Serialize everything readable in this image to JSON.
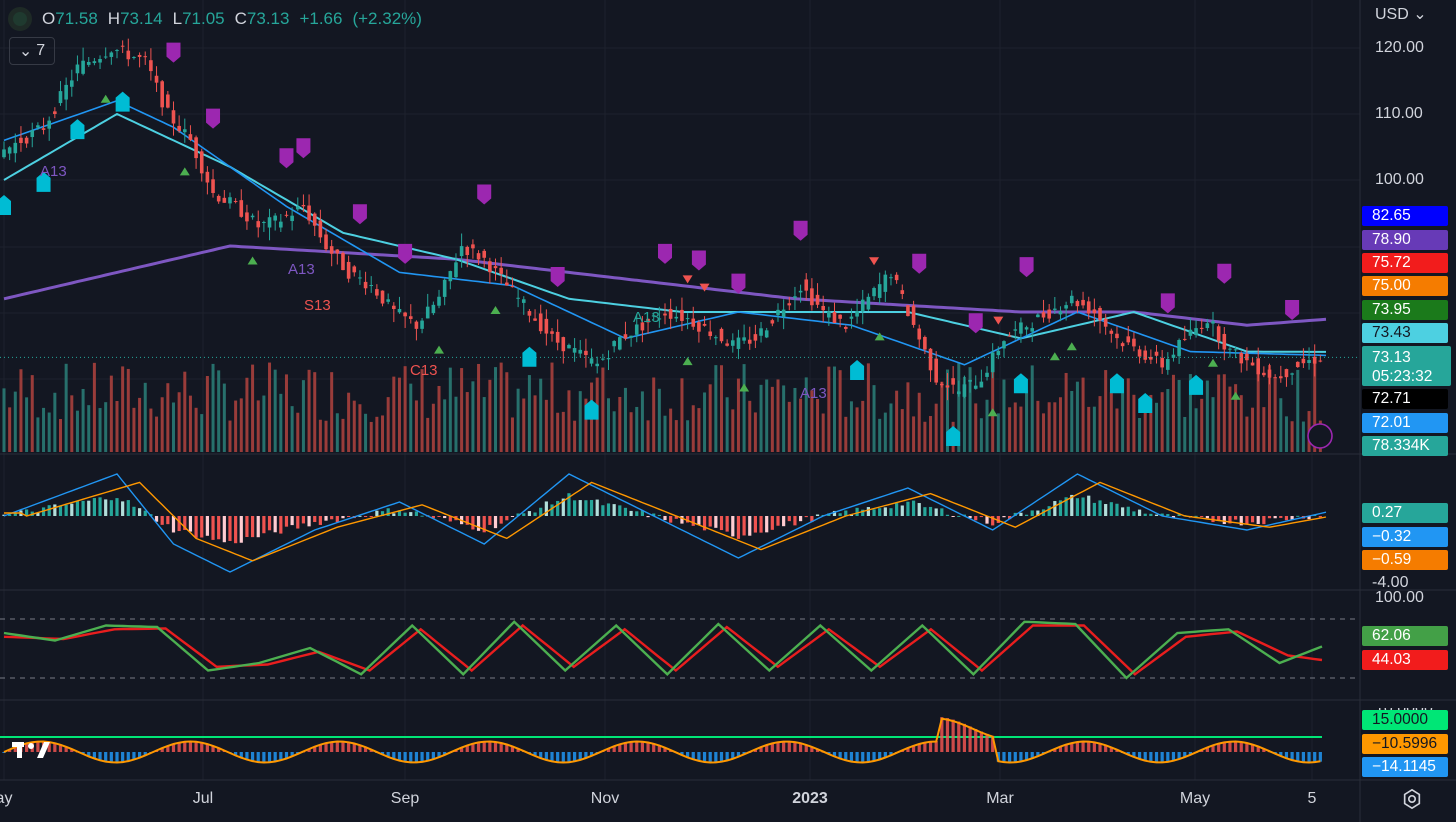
{
  "header": {
    "open_label": "O",
    "open": "71.58",
    "high_label": "H",
    "high": "73.14",
    "low_label": "L",
    "low": "71.05",
    "close_label": "C",
    "close": "73.13",
    "change": "+1.66",
    "change_pct": "(+2.32%)",
    "collapse_count": "7",
    "currency": "USD"
  },
  "colors": {
    "background": "#131722",
    "up": "#26a69a",
    "down": "#ef5350",
    "ma_fast": "#2196f3",
    "ma_mid": "#4dd0e1",
    "ma_slow": "#7e57c2",
    "stoch_k": "#4caf50",
    "stoch_d": "#e91e1e",
    "accent_purple": "#9c27b0"
  },
  "price_axis": {
    "ticks": [
      "120.00",
      "110.00",
      "100.00"
    ]
  },
  "macd_axis": {
    "ticks": [
      "-4.00"
    ]
  },
  "stoch_axis": {
    "ticks": [
      "100.00"
    ]
  },
  "osc_axis": {
    "ticks": [
      "10.0000"
    ]
  },
  "price_tags": [
    {
      "value": "82.65",
      "bg": "#0000ff",
      "fg": "#ffffff"
    },
    {
      "value": "78.90",
      "bg": "#673ab7",
      "fg": "#ffffff"
    },
    {
      "value": "75.72",
      "bg": "#f21c1c",
      "fg": "#ffffff"
    },
    {
      "value": "75.00",
      "bg": "#f57c00",
      "fg": "#ffffff"
    },
    {
      "value": "73.95",
      "bg": "#1b7a1b",
      "fg": "#ffffff"
    },
    {
      "value": "73.43",
      "bg": "#4dd0e1",
      "fg": "#131722"
    }
  ],
  "last_price": {
    "value": "73.13",
    "countdown": "05:23:32"
  },
  "lower_tags": [
    {
      "value": "72.71",
      "bg": "#000000",
      "fg": "#ffffff"
    },
    {
      "value": "72.01",
      "bg": "#2196f3",
      "fg": "#ffffff"
    },
    {
      "value": "78.334K",
      "bg": "#26a69a",
      "fg": "#ffffff"
    }
  ],
  "macd_tags": [
    {
      "value": "0.27",
      "bg": "#26a69a",
      "fg": "#ffffff"
    },
    {
      "value": "−0.32",
      "bg": "#2196f3",
      "fg": "#ffffff"
    },
    {
      "value": "−0.59",
      "bg": "#f57c00",
      "fg": "#ffffff"
    }
  ],
  "stoch_tags": [
    {
      "value": "62.06",
      "bg": "#43a047",
      "fg": "#ffffff"
    },
    {
      "value": "44.03",
      "bg": "#f21c1c",
      "fg": "#ffffff"
    }
  ],
  "osc_tags": [
    {
      "value": "15.0000",
      "bg": "#00e676",
      "fg": "#131722"
    },
    {
      "value": "−10.5996",
      "bg": "#ff9800",
      "fg": "#131722"
    },
    {
      "value": "−14.1145",
      "bg": "#2196f3",
      "fg": "#ffffff"
    }
  ],
  "x_axis": [
    {
      "label": "ay",
      "bold": false
    },
    {
      "label": "Jul",
      "bold": false
    },
    {
      "label": "Sep",
      "bold": false
    },
    {
      "label": "Nov",
      "bold": false
    },
    {
      "label": "2023",
      "bold": true
    },
    {
      "label": "Mar",
      "bold": false
    },
    {
      "label": "May",
      "bold": false
    },
    {
      "label": "5",
      "bold": false
    }
  ],
  "annotations": [
    "A13",
    "A13",
    "S13",
    "C13",
    "A13",
    "A13"
  ],
  "chart_data": {
    "type": "candlestick",
    "series_note": "",
    "price_range": [
      60,
      124
    ],
    "indicators": [
      "MA",
      "MA",
      "MA",
      "Volume",
      "MACD",
      "Stochastic",
      "Oscillator"
    ],
    "price_path": [
      [
        0,
        104
      ],
      [
        8,
        108
      ],
      [
        14,
        117
      ],
      [
        20,
        120
      ],
      [
        26,
        118
      ],
      [
        30,
        110
      ],
      [
        34,
        106
      ],
      [
        38,
        98
      ],
      [
        42,
        96
      ],
      [
        46,
        93
      ],
      [
        50,
        94
      ],
      [
        54,
        96
      ],
      [
        58,
        90
      ],
      [
        62,
        86
      ],
      [
        66,
        84
      ],
      [
        70,
        80
      ],
      [
        74,
        78
      ],
      [
        78,
        82
      ],
      [
        82,
        90
      ],
      [
        86,
        88
      ],
      [
        90,
        84
      ],
      [
        94,
        80
      ],
      [
        98,
        76
      ],
      [
        102,
        74
      ],
      [
        106,
        72
      ],
      [
        110,
        76
      ],
      [
        114,
        78
      ],
      [
        118,
        80
      ],
      [
        122,
        79
      ],
      [
        126,
        77
      ],
      [
        130,
        75
      ],
      [
        134,
        76
      ],
      [
        138,
        80
      ],
      [
        142,
        84
      ],
      [
        146,
        80
      ],
      [
        150,
        78
      ],
      [
        154,
        82
      ],
      [
        158,
        86
      ],
      [
        162,
        78
      ],
      [
        166,
        70
      ],
      [
        170,
        68
      ],
      [
        174,
        70
      ],
      [
        178,
        76
      ],
      [
        182,
        78
      ],
      [
        186,
        80
      ],
      [
        190,
        82
      ],
      [
        194,
        80
      ],
      [
        198,
        76
      ],
      [
        202,
        74
      ],
      [
        206,
        72
      ],
      [
        210,
        76
      ],
      [
        214,
        79
      ],
      [
        218,
        74
      ],
      [
        222,
        72
      ],
      [
        226,
        70
      ],
      [
        230,
        72
      ],
      [
        234,
        73.13
      ]
    ],
    "ma_fast": [
      [
        0,
        106
      ],
      [
        20,
        112
      ],
      [
        30,
        108
      ],
      [
        50,
        96
      ],
      [
        70,
        86
      ],
      [
        90,
        84
      ],
      [
        110,
        76
      ],
      [
        130,
        80
      ],
      [
        150,
        78
      ],
      [
        170,
        72
      ],
      [
        190,
        80
      ],
      [
        210,
        74
      ],
      [
        234,
        73.43
      ]
    ],
    "ma_mid": [
      [
        0,
        100
      ],
      [
        20,
        110
      ],
      [
        40,
        102
      ],
      [
        60,
        92
      ],
      [
        80,
        88
      ],
      [
        100,
        82
      ],
      [
        120,
        80
      ],
      [
        140,
        80
      ],
      [
        160,
        80
      ],
      [
        180,
        76
      ],
      [
        200,
        80
      ],
      [
        220,
        74
      ],
      [
        234,
        73.95
      ]
    ],
    "ma_slow": [
      [
        0,
        82
      ],
      [
        20,
        86
      ],
      [
        40,
        90
      ],
      [
        60,
        89
      ],
      [
        80,
        88
      ],
      [
        100,
        86
      ],
      [
        120,
        84
      ],
      [
        140,
        82
      ],
      [
        160,
        81
      ],
      [
        180,
        80
      ],
      [
        200,
        80
      ],
      [
        220,
        78
      ],
      [
        234,
        78.9
      ]
    ],
    "macd": [
      [
        0,
        0
      ],
      [
        20,
        3
      ],
      [
        30,
        -2
      ],
      [
        40,
        -4
      ],
      [
        55,
        -1
      ],
      [
        70,
        1
      ],
      [
        85,
        -2
      ],
      [
        100,
        3
      ],
      [
        115,
        0
      ],
      [
        130,
        -3
      ],
      [
        145,
        0
      ],
      [
        160,
        2
      ],
      [
        175,
        -1
      ],
      [
        190,
        3
      ],
      [
        205,
        0
      ],
      [
        220,
        -1
      ],
      [
        234,
        0.27
      ]
    ],
    "stoch_k": [
      [
        0,
        80
      ],
      [
        6,
        70
      ],
      [
        12,
        90
      ],
      [
        18,
        88
      ],
      [
        24,
        30
      ],
      [
        30,
        40
      ],
      [
        36,
        60
      ],
      [
        42,
        25
      ],
      [
        48,
        90
      ],
      [
        54,
        25
      ],
      [
        60,
        95
      ],
      [
        66,
        30
      ],
      [
        72,
        90
      ],
      [
        78,
        25
      ],
      [
        84,
        92
      ],
      [
        90,
        30
      ],
      [
        96,
        90
      ],
      [
        102,
        30
      ],
      [
        108,
        90
      ],
      [
        114,
        25
      ],
      [
        120,
        95
      ],
      [
        126,
        92
      ],
      [
        132,
        20
      ],
      [
        138,
        80
      ],
      [
        144,
        85
      ],
      [
        150,
        40
      ],
      [
        155,
        62.06
      ]
    ],
    "stoch_d": [
      [
        0,
        75
      ],
      [
        7,
        72
      ],
      [
        13,
        85
      ],
      [
        19,
        86
      ],
      [
        25,
        35
      ],
      [
        31,
        38
      ],
      [
        37,
        55
      ],
      [
        43,
        30
      ],
      [
        49,
        85
      ],
      [
        55,
        30
      ],
      [
        61,
        90
      ],
      [
        67,
        35
      ],
      [
        73,
        85
      ],
      [
        79,
        30
      ],
      [
        85,
        88
      ],
      [
        91,
        35
      ],
      [
        97,
        85
      ],
      [
        103,
        35
      ],
      [
        109,
        85
      ],
      [
        115,
        30
      ],
      [
        121,
        90
      ],
      [
        127,
        90
      ],
      [
        133,
        25
      ],
      [
        139,
        75
      ],
      [
        145,
        82
      ],
      [
        151,
        50
      ],
      [
        155,
        44.03
      ]
    ]
  }
}
